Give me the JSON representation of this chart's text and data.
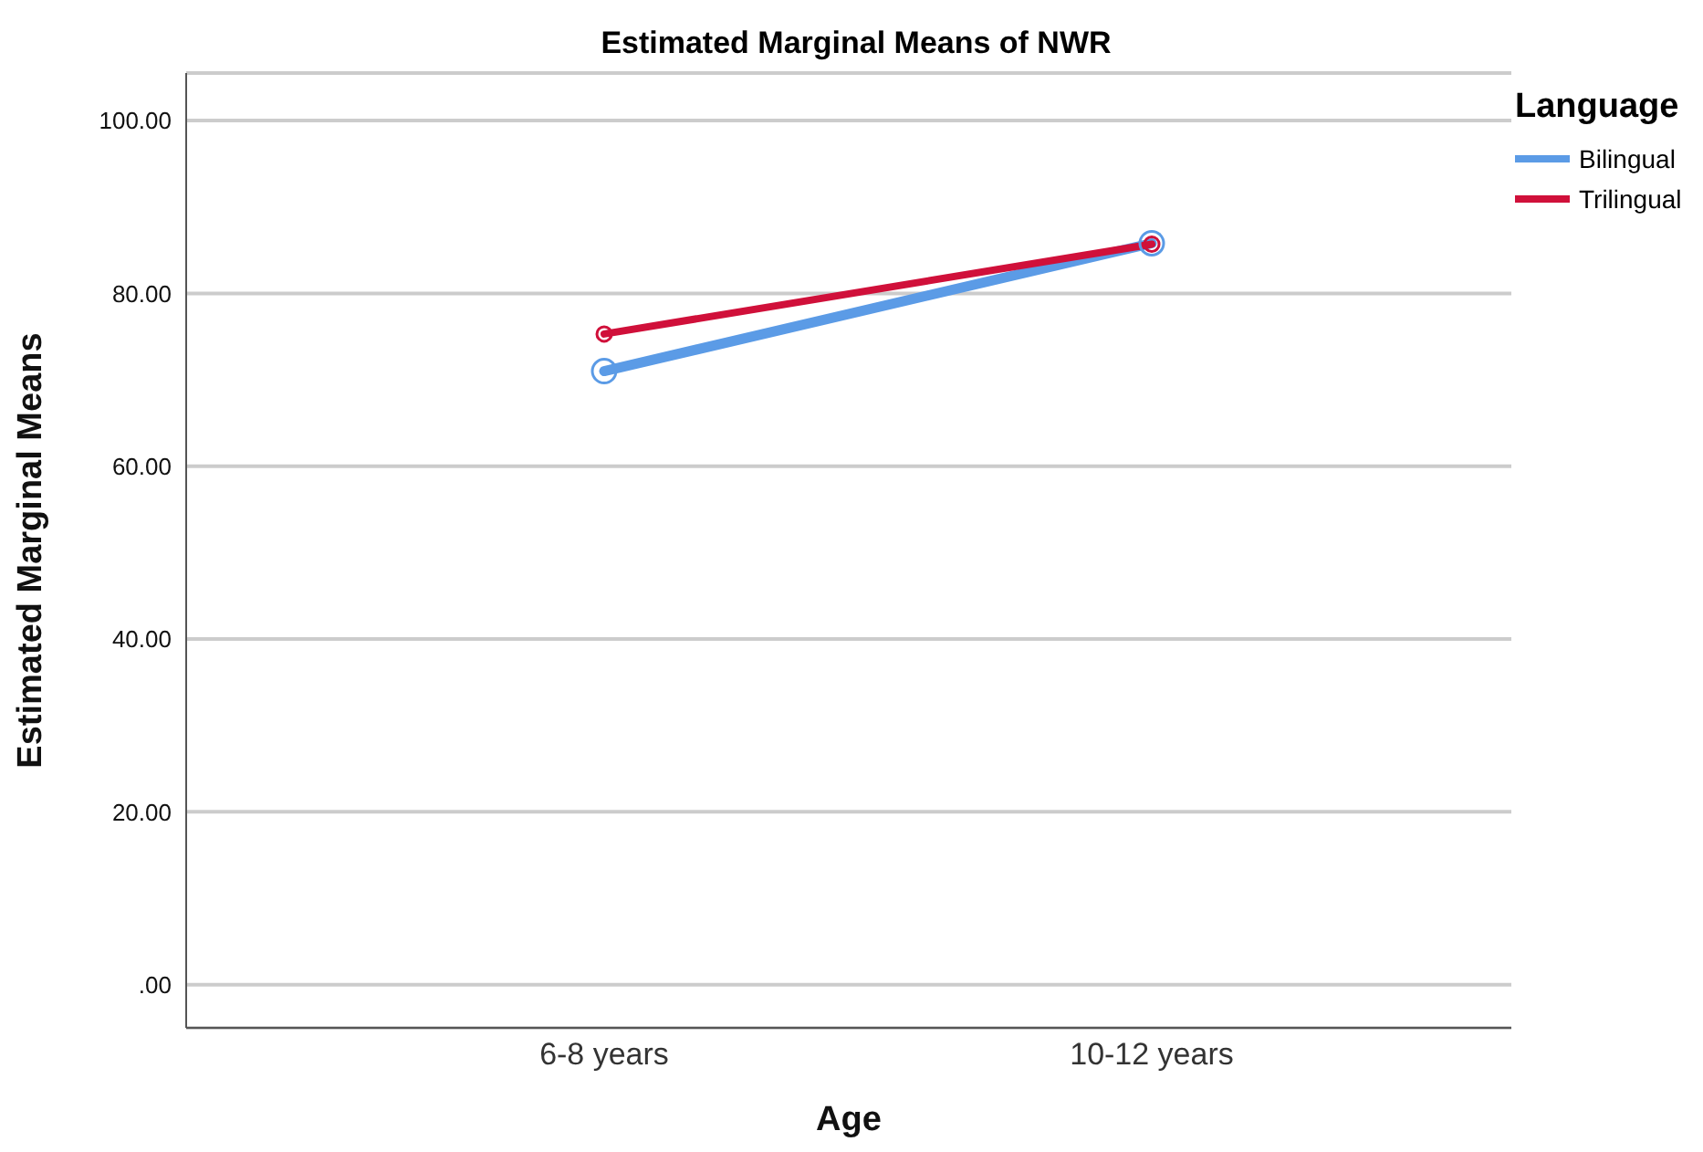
{
  "chart_data": {
    "type": "line",
    "title": "Estimated Marginal Means of NWR",
    "xlabel": "Age",
    "ylabel": "Estimated Marginal Means",
    "legend_title": "Language",
    "categories": [
      "6-8 years",
      "10-12 years"
    ],
    "series": [
      {
        "name": "Bilingual",
        "color": "#5b9be6",
        "values": [
          71.0,
          85.8
        ]
      },
      {
        "name": "Trilingual",
        "color": "#d0103a",
        "values": [
          75.3,
          85.7
        ]
      }
    ],
    "ylim": [
      -5,
      105.5
    ],
    "yticks": [
      {
        "value": 0,
        "label": ".00"
      },
      {
        "value": 20,
        "label": "20.00"
      },
      {
        "value": 40,
        "label": "40.00"
      },
      {
        "value": 60,
        "label": "60.00"
      },
      {
        "value": 80,
        "label": "80.00"
      },
      {
        "value": 100,
        "label": "100.00"
      }
    ],
    "grid": "y",
    "legend": "top right",
    "marker": "circle",
    "line_style": "solid"
  }
}
